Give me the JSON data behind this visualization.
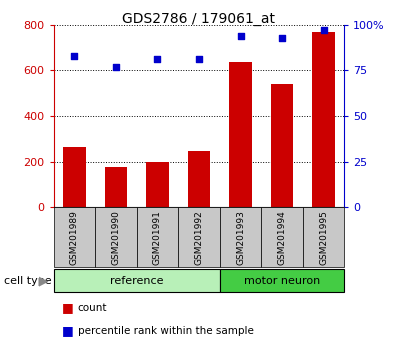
{
  "title": "GDS2786 / 179061_at",
  "categories": [
    "GSM201989",
    "GSM201990",
    "GSM201991",
    "GSM201992",
    "GSM201993",
    "GSM201994",
    "GSM201995"
  ],
  "counts": [
    265,
    178,
    200,
    248,
    638,
    540,
    770
  ],
  "percentile_ranks": [
    83,
    77,
    81,
    81,
    94,
    93,
    97
  ],
  "left_ylim": [
    0,
    800
  ],
  "left_yticks": [
    0,
    200,
    400,
    600,
    800
  ],
  "right_ylim": [
    0,
    100
  ],
  "right_yticks": [
    0,
    25,
    50,
    75,
    100
  ],
  "right_yticklabels": [
    "0",
    "25",
    "50",
    "75",
    "100%"
  ],
  "bar_color": "#cc0000",
  "scatter_color": "#0000cc",
  "left_tick_color": "#cc0000",
  "right_tick_color": "#0000cc",
  "group_reference_color": "#b8f0b8",
  "group_motor_color": "#44cc44",
  "cell_type_label": "cell type",
  "legend_count_label": "count",
  "legend_pct_label": "percentile rank within the sample",
  "title_fontsize": 10,
  "label_fontsize": 6.5,
  "group_fontsize": 8,
  "cell_type_fontsize": 8,
  "legend_fontsize": 7.5
}
